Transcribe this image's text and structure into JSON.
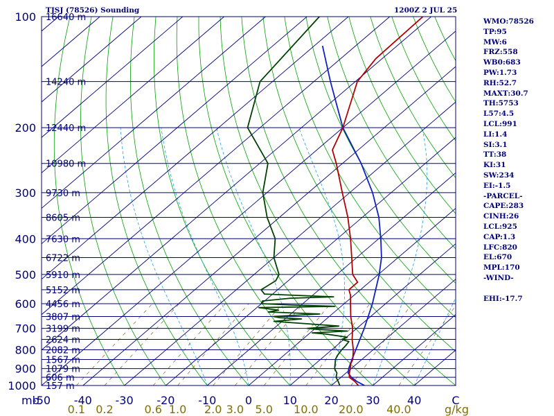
{
  "title": {
    "station": "TJSJ (78526) Sounding",
    "time": "1200Z  2 JUL 25"
  },
  "indices": [
    "WMO:78526",
    "TP:95",
    "MW:6",
    "FRZ:558",
    "WB0:683",
    "PW:1.73",
    "RH:52.7",
    "MAXT:30.7",
    "TH:5753",
    "L57:4.5",
    "LCL:991",
    "LI:1.4",
    "SI:3.1",
    "TT:38",
    "KI:31",
    "SW:234",
    "EI:-1.5",
    "-PARCEL-",
    "CAPE:283",
    "CINH:26",
    "LCL:925",
    "CAP:1.3",
    "LFC:820",
    "EL:670",
    "MPL:170",
    "-WIND-",
    "",
    "EHI:-17.7"
  ],
  "colors": {
    "background": "#ffffff",
    "isobar": "#00007a",
    "isotherm": "#00007a",
    "dry_adiabat": "#00a000",
    "moist_adiabat": "#20a0e0",
    "mixing_ratio": "#806020",
    "temperature": "#b00000",
    "dewpoint": "#004000",
    "parcel": "#1020c0",
    "text": "#00007a",
    "mixing_ratio_label": "#807000",
    "temp_tick_label": "#00007a"
  },
  "chart_data": {
    "type": "skew-t log-p sounding",
    "ylabel": "mb",
    "ylim": [
      1000,
      100
    ],
    "xlim": [
      -50,
      50
    ],
    "pressure_ticks": [
      100,
      200,
      300,
      400,
      500,
      600,
      700,
      800,
      900,
      1000
    ],
    "height_labels": [
      {
        "p": 100,
        "label": "16640 m"
      },
      {
        "p": 150,
        "label": "14240 m"
      },
      {
        "p": 200,
        "label": "12440 m"
      },
      {
        "p": 250,
        "label": "10980 m"
      },
      {
        "p": 300,
        "label": "9730 m"
      },
      {
        "p": 350,
        "label": "8605 m"
      },
      {
        "p": 400,
        "label": "7630 m"
      },
      {
        "p": 450,
        "label": "6722 m"
      },
      {
        "p": 500,
        "label": "5910 m"
      },
      {
        "p": 550,
        "label": "5152 m"
      },
      {
        "p": 600,
        "label": "4456 m"
      },
      {
        "p": 650,
        "label": "3807 m"
      },
      {
        "p": 700,
        "label": "3199 m"
      },
      {
        "p": 750,
        "label": "2624 m"
      },
      {
        "p": 800,
        "label": "2082 m"
      },
      {
        "p": 850,
        "label": "1567 m"
      },
      {
        "p": 900,
        "label": "1079 m"
      },
      {
        "p": 950,
        "label": "606 m"
      },
      {
        "p": 1000,
        "label": "157 m"
      }
    ],
    "temperature_ticks": [
      -50,
      -40,
      -30,
      -20,
      -10,
      0,
      10,
      20,
      30,
      40,
      50
    ],
    "temperature_tick_labels": [
      "-50",
      "-40",
      "-30",
      "-20",
      "-10",
      "0",
      "10",
      "20",
      "30",
      "40",
      "C"
    ],
    "mixing_ratio_values": [
      0.1,
      0.2,
      0.6,
      1.0,
      2.0,
      3.0,
      5.0,
      10.0,
      20.0,
      40.0
    ],
    "mixing_ratio_labels": [
      "0.1",
      "0.2",
      "0.6",
      "1.0",
      "2.0",
      "3.0",
      "5.0",
      "10.0",
      "20.0",
      "40.0"
    ],
    "mixing_ratio_unit": "g/kg",
    "temperature": [
      [
        1000,
        26.5
      ],
      [
        975,
        24.5
      ],
      [
        950,
        22.0
      ],
      [
        925,
        20.8
      ],
      [
        900,
        19.8
      ],
      [
        875,
        18.6
      ],
      [
        850,
        17.8
      ],
      [
        800,
        15.2
      ],
      [
        750,
        12.0
      ],
      [
        700,
        9.0
      ],
      [
        650,
        5.2
      ],
      [
        600,
        1.5
      ],
      [
        570,
        -0.8
      ],
      [
        550,
        -2.8
      ],
      [
        525,
        -2.8
      ],
      [
        500,
        -6.2
      ],
      [
        450,
        -11.2
      ],
      [
        400,
        -16.8
      ],
      [
        350,
        -23.5
      ],
      [
        300,
        -31.8
      ],
      [
        250,
        -41.5
      ],
      [
        230,
        -46.2
      ],
      [
        200,
        -50.0
      ],
      [
        150,
        -59.5
      ],
      [
        130,
        -61.5
      ],
      [
        100,
        -62.0
      ]
    ],
    "dewpoint": [
      [
        1000,
        22.0
      ],
      [
        975,
        20.5
      ],
      [
        950,
        18.8
      ],
      [
        925,
        17.8
      ],
      [
        900,
        16.0
      ],
      [
        870,
        14.6
      ],
      [
        850,
        13.6
      ],
      [
        830,
        13.0
      ],
      [
        810,
        12.6
      ],
      [
        800,
        12.4
      ],
      [
        780,
        12.2
      ],
      [
        760,
        11.8
      ],
      [
        750,
        9.5
      ],
      [
        740,
        10.2
      ],
      [
        725,
        4.0
      ],
      [
        720,
        0.5
      ],
      [
        712,
        8.5
      ],
      [
        705,
        1.0
      ],
      [
        700,
        -2.0
      ],
      [
        690,
        5.0
      ],
      [
        680,
        -3.5
      ],
      [
        670,
        -12.0
      ],
      [
        660,
        -6.0
      ],
      [
        655,
        -11.5
      ],
      [
        650,
        -13.5
      ],
      [
        640,
        -3.0
      ],
      [
        632,
        -16.0
      ],
      [
        625,
        -14.0
      ],
      [
        615,
        -19.5
      ],
      [
        610,
        -1.5
      ],
      [
        605,
        -12.5
      ],
      [
        600,
        -20.0
      ],
      [
        590,
        -20.5
      ],
      [
        580,
        -14.5
      ],
      [
        575,
        -4.5
      ],
      [
        565,
        -22.0
      ],
      [
        550,
        -24.0
      ],
      [
        520,
        -23.0
      ],
      [
        500,
        -24.0
      ],
      [
        450,
        -30.0
      ],
      [
        400,
        -35.0
      ],
      [
        350,
        -43.0
      ],
      [
        300,
        -51.0
      ],
      [
        250,
        -58.0
      ],
      [
        200,
        -73.0
      ],
      [
        150,
        -83.0
      ],
      [
        100,
        -87.0
      ]
    ],
    "parcel": [
      [
        1000,
        28.0
      ],
      [
        975,
        25.0
      ],
      [
        950,
        22.5
      ],
      [
        925,
        20.5
      ],
      [
        900,
        19.4
      ],
      [
        850,
        17.6
      ],
      [
        800,
        15.8
      ],
      [
        700,
        11.8
      ],
      [
        600,
        6.8
      ],
      [
        500,
        0.2
      ],
      [
        450,
        -4.0
      ],
      [
        400,
        -9.5
      ],
      [
        350,
        -16.0
      ],
      [
        300,
        -24.5
      ],
      [
        250,
        -35.5
      ],
      [
        200,
        -50.0
      ],
      [
        150,
        -66.0
      ],
      [
        120,
        -78.0
      ]
    ],
    "grid": true
  }
}
